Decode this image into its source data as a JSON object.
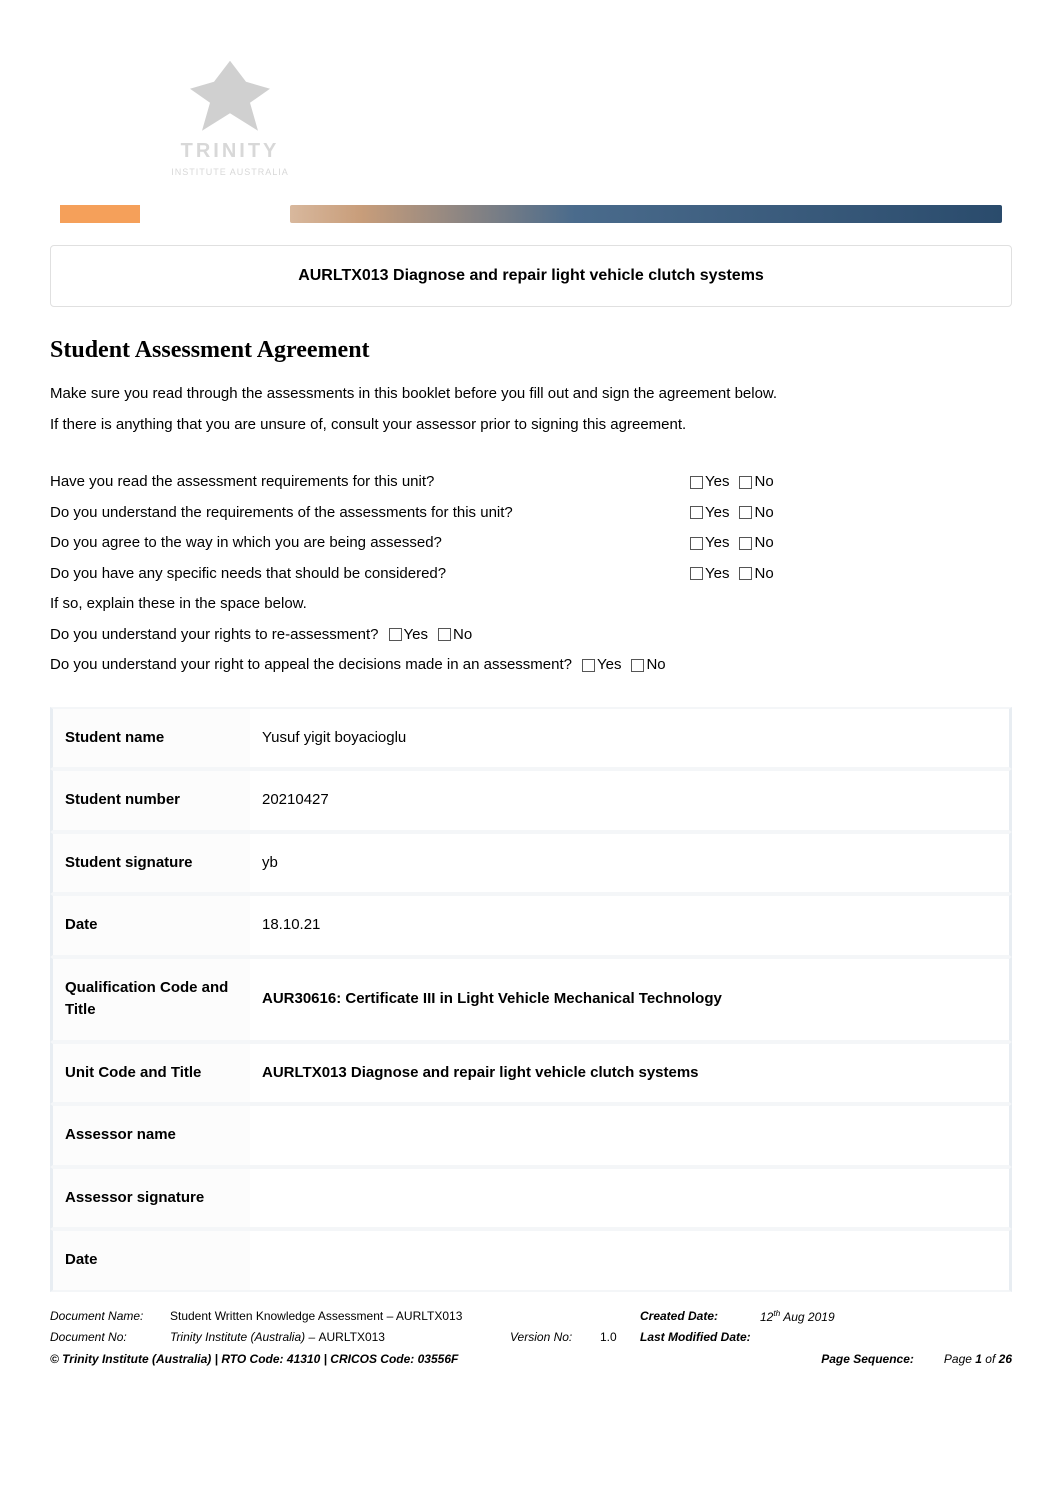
{
  "banner": {
    "logo_name": "TRINITY",
    "logo_sub": "INSTITUTE AUSTRALIA",
    "address_line1": "",
    "address_line2": "",
    "address_line3": "",
    "colors": {
      "orange": "#f5a05a",
      "blue_dark": "#2a4b6c",
      "logo_gray": "#d0d0d0"
    }
  },
  "title": "AURLTX013 Diagnose and repair light vehicle clutch systems",
  "heading": "Student Assessment Agreement",
  "intro1": "Make sure you read through the assessments in this booklet before you fill out and sign the agreement below.",
  "intro2": "If there is anything that you are unsure of, consult your assessor prior to signing this agreement.",
  "questions": {
    "q1": "Have you read the assessment requirements for this unit?",
    "q2": "Do you understand the requirements of the assessments for this unit?",
    "q3": "Do you agree to the way in which you are being assessed?",
    "q4": "Do you have any specific needs that should be considered?",
    "q4b": "If so, explain these in the space below.",
    "q5": "Do you understand your rights to re-assessment?",
    "q6": "Do you understand your right to appeal the decisions made in an assessment?",
    "yes": "Yes",
    "no": "No"
  },
  "form": {
    "student_name_label": "Student name",
    "student_name": "Yusuf yigit boyacioglu",
    "student_number_label": "Student number",
    "student_number": "20210427",
    "student_sig_label": "Student signature",
    "student_sig": "yb",
    "date_label": "Date",
    "date": "18.10.21",
    "qual_label": "Qualification Code and Title",
    "qual": "AUR30616: Certificate III in Light Vehicle Mechanical Technology",
    "unit_label": "Unit Code and Title",
    "unit": "AURLTX013 Diagnose and repair light vehicle clutch systems",
    "assessor_name_label": "Assessor name",
    "assessor_name": "",
    "assessor_sig_label": "Assessor signature",
    "assessor_sig": "",
    "date2_label": "Date",
    "date2": ""
  },
  "footer": {
    "doc_name_label": "Document Name:",
    "doc_name": "Student Written Knowledge Assessment – AURLTX013",
    "doc_no_label": "Document No:",
    "doc_no_prefix": "Trinity Institute (Australia) – ",
    "doc_no_code": "AURLTX013",
    "version_label": "Version No:",
    "version": "1.0",
    "created_label": "Created Date:",
    "created": "12",
    "created_suffix": "th",
    "created_rest": " Aug 2019",
    "modified_label": "Last Modified Date:",
    "modified": "",
    "copyright": "© Trinity Institute (Australia) | RTO Code: 41310 | CRICOS Code: 03556F",
    "pageseq_label": "Page Sequence:",
    "page_prefix": "Page ",
    "page_num": "1",
    "page_mid": " of ",
    "page_total": "26"
  }
}
